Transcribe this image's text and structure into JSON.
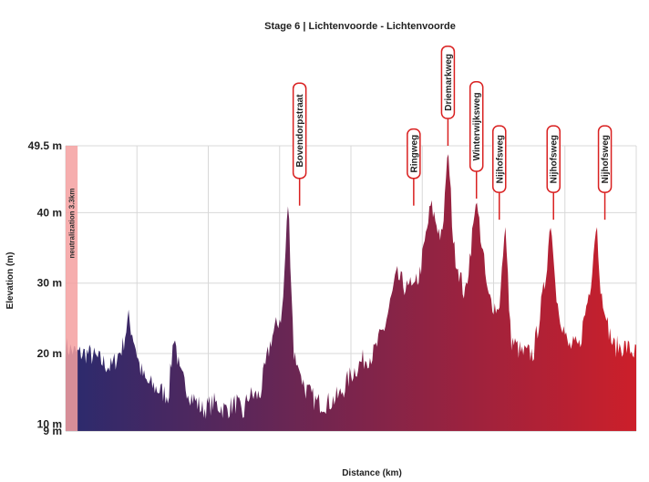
{
  "chart_data": {
    "type": "area",
    "title": "Stage 6 | Lichtenvoorde - Lichtenvoorde",
    "xlabel": "Distance (km)",
    "ylabel": "Elevation (m)",
    "ylim": [
      9,
      49.5
    ],
    "y_ticks": [
      {
        "value": 49.5,
        "label": "49.5 m"
      },
      {
        "value": 40,
        "label": "40 m"
      },
      {
        "value": 30,
        "label": "30 m"
      },
      {
        "value": 20,
        "label": "20 m"
      },
      {
        "value": 10,
        "label": "10 m"
      },
      {
        "value": 9,
        "label": "9 m"
      }
    ],
    "x_ticks": [],
    "grid": true,
    "gradient_colors": [
      "#2a2a6e",
      "#cc1f2a"
    ],
    "neutralization": {
      "label": "neutralization 3.3km",
      "end_fraction": 0.021,
      "color": "#f4a0a0"
    },
    "profile": {
      "x": [
        0,
        0.02,
        0.04,
        0.06,
        0.08,
        0.1,
        0.11,
        0.12,
        0.13,
        0.14,
        0.16,
        0.18,
        0.19,
        0.2,
        0.22,
        0.24,
        0.26,
        0.28,
        0.3,
        0.31,
        0.32,
        0.34,
        0.36,
        0.38,
        0.39,
        0.4,
        0.42,
        0.44,
        0.46,
        0.48,
        0.5,
        0.52,
        0.54,
        0.56,
        0.58,
        0.6,
        0.62,
        0.64,
        0.66,
        0.67,
        0.68,
        0.7,
        0.72,
        0.74,
        0.76,
        0.77,
        0.78,
        0.8,
        0.82,
        0.84,
        0.85,
        0.86,
        0.88,
        0.9,
        0.92,
        0.93,
        0.94,
        0.96,
        0.98,
        1.0
      ],
      "y": [
        21,
        20,
        20,
        19,
        18,
        21,
        25,
        22,
        18,
        16,
        15,
        14,
        23,
        17,
        14,
        12,
        13,
        12,
        13,
        11,
        14,
        14,
        22,
        26,
        42,
        20,
        15,
        13,
        13,
        14,
        17,
        19,
        20,
        24,
        31,
        29,
        31,
        41,
        36,
        49.5,
        35,
        28,
        42,
        28,
        26,
        39,
        22,
        20,
        20,
        30,
        39,
        28,
        21,
        21,
        30,
        39,
        27,
        21,
        21,
        20
      ]
    },
    "climbs": [
      {
        "name": "Bovendorpstraat",
        "x": 0.41,
        "y": 41
      },
      {
        "name": "Ringweg",
        "x": 0.61,
        "y": 41
      },
      {
        "name": "Driemarkweg",
        "x": 0.67,
        "y": 49.5
      },
      {
        "name": "Winterwijksweg",
        "x": 0.72,
        "y": 42
      },
      {
        "name": "Nijhofsweg",
        "x": 0.76,
        "y": 39
      },
      {
        "name": "Nijhofsweg",
        "x": 0.855,
        "y": 39
      },
      {
        "name": "Nijhofsweg",
        "x": 0.945,
        "y": 39
      }
    ]
  }
}
